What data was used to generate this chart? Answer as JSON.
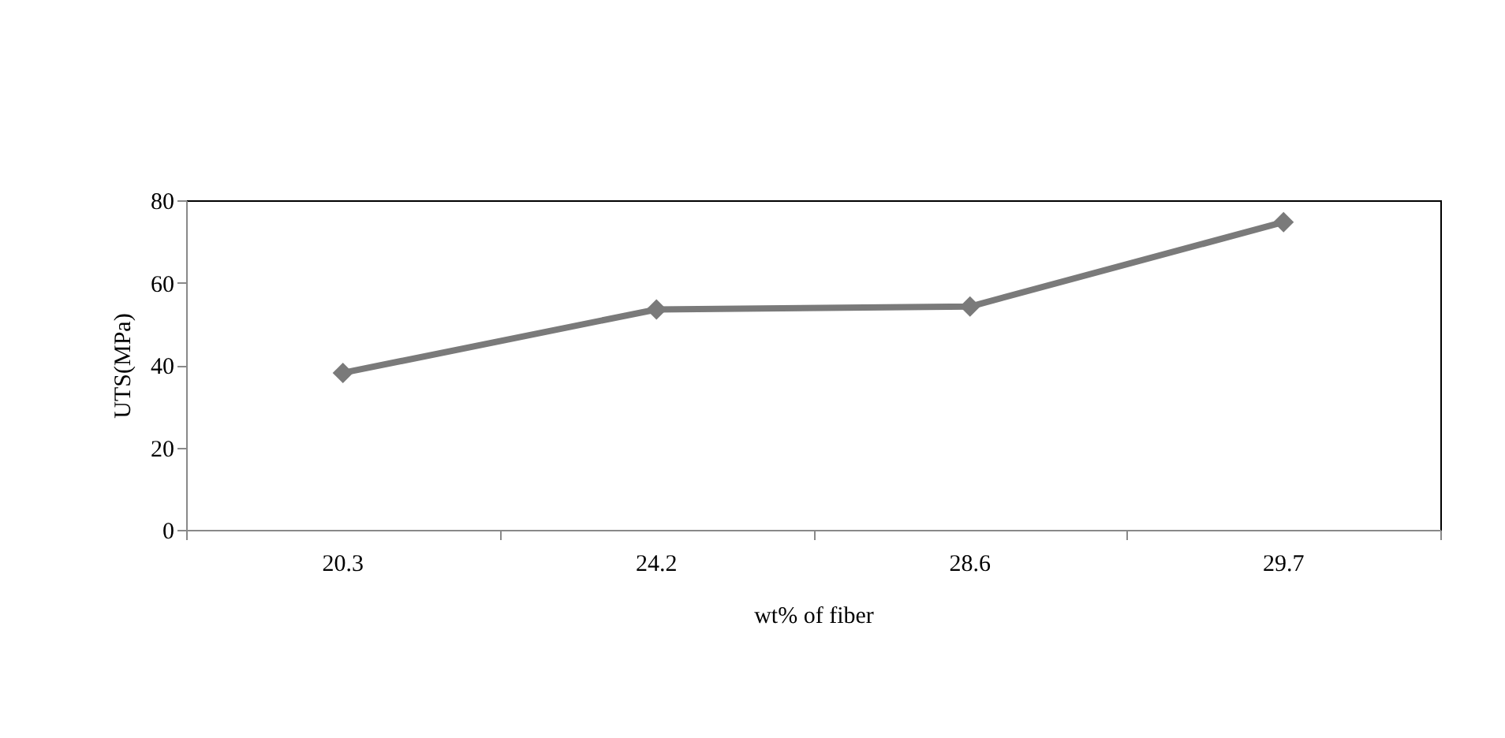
{
  "chart_data": {
    "type": "line",
    "xlabel": "wt% of fiber",
    "ylabel": "UTS(MPa)",
    "categories": [
      "20.3",
      "24.2",
      "28.6",
      "29.7"
    ],
    "series": [
      {
        "color": "#7a7a7a",
        "values": [
          38.1,
          53.5,
          54.2,
          74.7
        ]
      }
    ],
    "ylim": [
      0,
      80
    ],
    "yticks": [
      0,
      20,
      40,
      60,
      80
    ],
    "marker": "diamond",
    "line_style": "solid",
    "grid": false
  }
}
